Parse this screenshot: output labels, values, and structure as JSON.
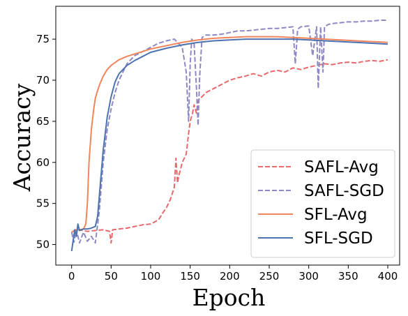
{
  "chart_data": {
    "type": "line",
    "xlabel": "Epoch",
    "ylabel": "Accuracy",
    "xlim": [
      -20,
      415
    ],
    "ylim": [
      47.5,
      79
    ],
    "xticks": [
      0,
      50,
      100,
      150,
      200,
      250,
      300,
      350,
      400
    ],
    "yticks": [
      50,
      55,
      60,
      65,
      70,
      75
    ],
    "grid": false,
    "legend_position": "lower-right",
    "series": [
      {
        "name": "SAFL-Avg",
        "color": "#e8696b",
        "dash": "dashed",
        "x": [
          0,
          5,
          10,
          20,
          30,
          40,
          48,
          50,
          52,
          60,
          70,
          80,
          90,
          100,
          110,
          115,
          120,
          125,
          130,
          132,
          134,
          136,
          140,
          145,
          148,
          150,
          153,
          155,
          158,
          160,
          165,
          170,
          180,
          190,
          200,
          210,
          220,
          230,
          240,
          250,
          260,
          270,
          280,
          290,
          300,
          310,
          320,
          330,
          340,
          350,
          360,
          370,
          380,
          390,
          400
        ],
        "y": [
          51.5,
          51.8,
          51.8,
          51.6,
          51.7,
          51.8,
          51.6,
          50.2,
          51.8,
          51.9,
          52.0,
          52.2,
          52.4,
          52.5,
          53.0,
          53.8,
          54.5,
          55.5,
          57.0,
          60.5,
          57.5,
          58.5,
          60.0,
          61.0,
          63.5,
          65.0,
          66.0,
          67.0,
          66.0,
          67.5,
          68.0,
          68.5,
          69.0,
          69.5,
          70.0,
          70.3,
          70.5,
          70.8,
          70.5,
          71.0,
          71.2,
          71.0,
          71.5,
          71.3,
          71.6,
          71.8,
          72.0,
          71.9,
          72.1,
          72.2,
          72.1,
          72.3,
          72.4,
          72.3,
          72.5
        ]
      },
      {
        "name": "SAFL-SGD",
        "color": "#8c88c4",
        "dash": "dashed",
        "x": [
          0,
          3,
          6,
          10,
          15,
          20,
          25,
          30,
          35,
          40,
          45,
          50,
          55,
          60,
          65,
          70,
          80,
          90,
          100,
          110,
          120,
          130,
          140,
          145,
          148,
          150,
          152,
          155,
          158,
          160,
          162,
          165,
          170,
          180,
          190,
          200,
          210,
          220,
          230,
          240,
          250,
          260,
          270,
          280,
          283,
          286,
          290,
          300,
          305,
          310,
          312,
          315,
          318,
          320,
          325,
          330,
          340,
          350,
          360,
          370,
          380,
          390,
          400
        ],
        "y": [
          51.5,
          50.3,
          51.8,
          50.2,
          51.5,
          50.4,
          51.0,
          50.2,
          54.0,
          60.0,
          64.0,
          66.5,
          68.5,
          70.0,
          71.0,
          72.0,
          73.0,
          73.5,
          74.0,
          74.5,
          74.8,
          75.0,
          74.0,
          71.0,
          65.0,
          72.0,
          75.0,
          74.5,
          69.0,
          64.5,
          70.5,
          75.2,
          75.5,
          75.5,
          75.6,
          75.8,
          76.0,
          76.0,
          76.1,
          76.2,
          76.3,
          76.3,
          76.4,
          76.5,
          72.0,
          76.2,
          76.5,
          76.6,
          73.0,
          76.5,
          69.0,
          76.5,
          71.0,
          76.5,
          76.8,
          76.9,
          77.0,
          77.1,
          77.1,
          77.2,
          77.2,
          77.3,
          77.3
        ]
      },
      {
        "name": "SFL-Avg",
        "color": "#f0845a",
        "dash": "solid",
        "x": [
          0,
          5,
          10,
          15,
          18,
          20,
          22,
          25,
          28,
          30,
          33,
          36,
          40,
          45,
          50,
          60,
          70,
          80,
          90,
          100,
          120,
          140,
          160,
          180,
          200,
          220,
          240,
          260,
          280,
          300,
          320,
          340,
          360,
          380,
          400
        ],
        "y": [
          51.5,
          51.8,
          51.8,
          51.9,
          52.5,
          55.0,
          60.0,
          64.0,
          66.5,
          67.8,
          68.8,
          69.6,
          70.5,
          71.3,
          71.8,
          72.5,
          72.9,
          73.2,
          73.5,
          73.8,
          74.2,
          74.6,
          74.9,
          75.1,
          75.2,
          75.3,
          75.3,
          75.3,
          75.2,
          75.1,
          75.0,
          74.9,
          74.8,
          74.7,
          74.6
        ]
      },
      {
        "name": "SFL-SGD",
        "color": "#4c72b0",
        "dash": "solid",
        "x": [
          0,
          2,
          4,
          6,
          8,
          10,
          15,
          20,
          25,
          30,
          33,
          36,
          40,
          45,
          50,
          55,
          60,
          70,
          80,
          90,
          100,
          120,
          140,
          160,
          180,
          200,
          220,
          240,
          260,
          280,
          300,
          320,
          340,
          360,
          380,
          400
        ],
        "y": [
          49.2,
          50.5,
          51.8,
          51.0,
          52.5,
          51.7,
          51.9,
          51.9,
          52.0,
          52.2,
          53.5,
          57.0,
          61.5,
          65.5,
          68.0,
          69.8,
          70.8,
          71.8,
          72.4,
          72.9,
          73.4,
          73.9,
          74.3,
          74.6,
          74.8,
          74.9,
          75.0,
          75.0,
          75.0,
          75.0,
          74.9,
          74.8,
          74.7,
          74.6,
          74.5,
          74.4
        ]
      }
    ]
  }
}
